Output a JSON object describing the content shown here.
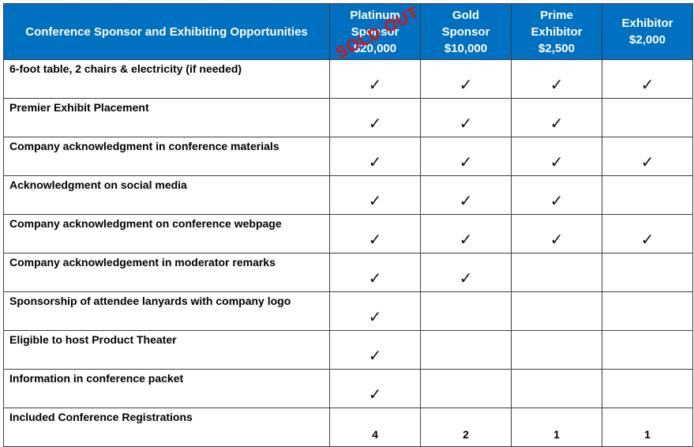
{
  "header": {
    "title": "Conference Sponsor and Exhibiting Opportunities",
    "tiers": [
      {
        "line1": "Platinum",
        "line2": "Sponsor",
        "price": "$20,000",
        "stamp": "SOLD OUT"
      },
      {
        "line1": "Gold",
        "line2": "Sponsor",
        "price": "$10,000"
      },
      {
        "line1": "Prime",
        "line2": "Exhibitor",
        "price": "$2,500"
      },
      {
        "line1": "Exhibitor",
        "line2": "",
        "price": "$2,000"
      }
    ]
  },
  "check_glyph": "✓",
  "rows": [
    {
      "label": "6-foot table, 2 chairs & electricity (if needed)",
      "cells": [
        true,
        true,
        true,
        true
      ]
    },
    {
      "label": "Premier Exhibit Placement",
      "cells": [
        true,
        true,
        true,
        false
      ]
    },
    {
      "label": "Company acknowledgment in conference materials",
      "cells": [
        true,
        true,
        true,
        true
      ]
    },
    {
      "label": "Acknowledgment on social media",
      "cells": [
        true,
        true,
        true,
        false
      ]
    },
    {
      "label": "Company acknowledgment on conference webpage",
      "cells": [
        true,
        true,
        true,
        true
      ]
    },
    {
      "label": "Company acknowledgement in moderator remarks",
      "cells": [
        true,
        true,
        false,
        false
      ]
    },
    {
      "label": "Sponsorship of attendee lanyards with company logo",
      "cells": [
        true,
        false,
        false,
        false
      ]
    },
    {
      "label": "Eligible to host Product Theater",
      "cells": [
        true,
        false,
        false,
        false
      ]
    },
    {
      "label": "Information in conference packet",
      "cells": [
        true,
        false,
        false,
        false
      ]
    },
    {
      "label": "Included Conference Registrations",
      "cells": [
        "4",
        "2",
        "1",
        "1"
      ]
    }
  ],
  "colors": {
    "header_bg": "#0070c0",
    "stamp": "#e01010"
  }
}
